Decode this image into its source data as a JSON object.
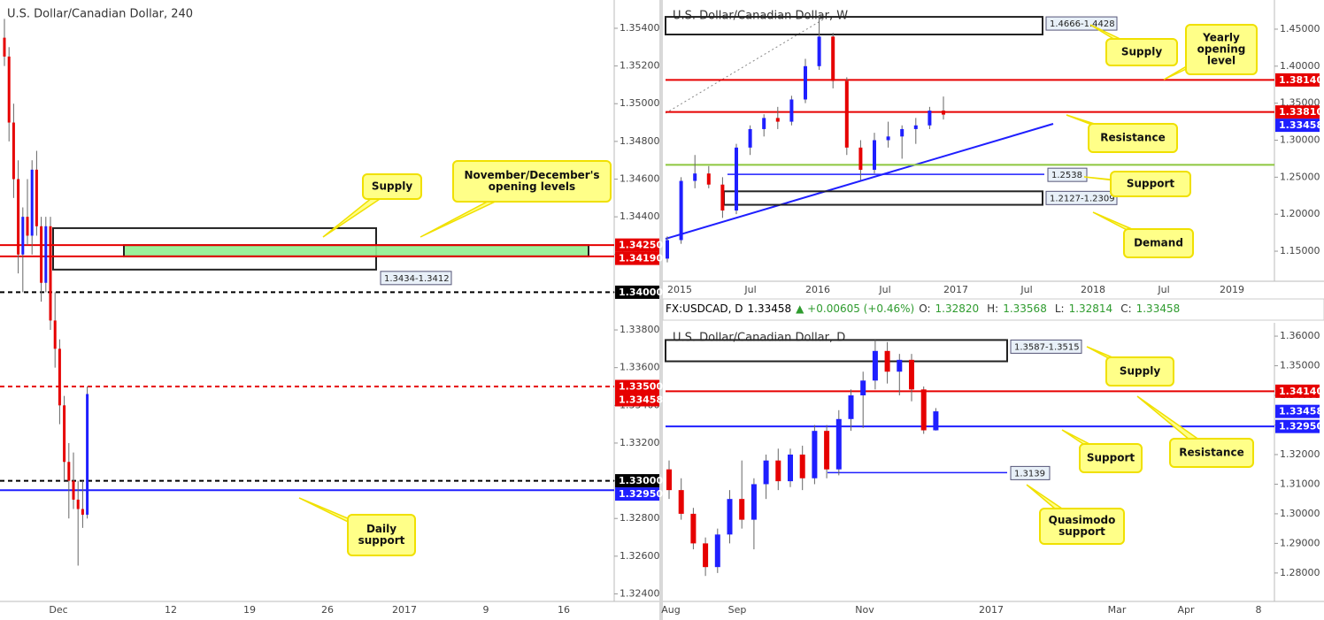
{
  "quote_bar": {
    "symbol": "FX:USDCAD, D",
    "price": "1.33458",
    "change": "▲ +0.00605 (+0.46%)",
    "ohlc": [
      {
        "key": "O:",
        "value": "1.32820"
      },
      {
        "key": "H:",
        "value": "1.33568"
      },
      {
        "key": "L:",
        "value": "1.32814"
      },
      {
        "key": "C:",
        "value": "1.33458"
      }
    ]
  },
  "chart_data": [
    {
      "type": "candlestick",
      "title": "U.S. Dollar/Canadian Dollar, 240",
      "up_color": "#1f1fff",
      "down_color": "#e60000",
      "xtick_labels": [
        "Dec",
        "12",
        "19",
        "26",
        "2017",
        "9",
        "16"
      ],
      "ylim": [
        1.3236,
        1.3555
      ],
      "yticks": [
        {
          "value": 1.324,
          "label": "1.32400"
        },
        {
          "value": 1.326,
          "label": "1.32600"
        },
        {
          "value": 1.328,
          "label": "1.32800"
        },
        {
          "value": 1.33,
          "label": "1.33000"
        },
        {
          "value": 1.332,
          "label": "1.33200"
        },
        {
          "value": 1.334,
          "label": "1.33400"
        },
        {
          "value": 1.336,
          "label": "1.33600"
        },
        {
          "value": 1.338,
          "label": "1.33800"
        },
        {
          "value": 1.34,
          "label": "1.34000"
        },
        {
          "value": 1.342,
          "label": "1.34200"
        },
        {
          "value": 1.344,
          "label": "1.34400"
        },
        {
          "value": 1.346,
          "label": "1.34600"
        },
        {
          "value": 1.348,
          "label": "1.34800"
        },
        {
          "value": 1.35,
          "label": "1.35000"
        },
        {
          "value": 1.352,
          "label": "1.35200"
        },
        {
          "value": 1.354,
          "label": "1.35400"
        }
      ],
      "open": [
        1.3535,
        1.3525,
        1.349,
        1.346,
        1.342,
        1.344,
        1.343,
        1.3465,
        1.3435,
        1.3405,
        1.3435,
        1.3385,
        1.337,
        1.334,
        1.331,
        1.33,
        1.329,
        1.3285,
        1.3282
      ],
      "high": [
        1.3545,
        1.353,
        1.35,
        1.347,
        1.3445,
        1.346,
        1.347,
        1.3475,
        1.344,
        1.344,
        1.344,
        1.34,
        1.3375,
        1.3345,
        1.332,
        1.3315,
        1.33,
        1.33,
        1.335
      ],
      "low": [
        1.352,
        1.348,
        1.345,
        1.341,
        1.34,
        1.3425,
        1.342,
        1.343,
        1.3395,
        1.34,
        1.338,
        1.336,
        1.333,
        1.33,
        1.328,
        1.3285,
        1.3255,
        1.3275,
        1.328
      ],
      "close": [
        1.3525,
        1.349,
        1.346,
        1.342,
        1.344,
        1.343,
        1.3465,
        1.3435,
        1.3405,
        1.3435,
        1.3385,
        1.337,
        1.334,
        1.331,
        1.33,
        1.329,
        1.3285,
        1.3282,
        1.3346
      ],
      "zones": [
        {
          "top": 1.3434,
          "bottom": 1.3412,
          "label": "1.3434-1.3412",
          "color": "none"
        },
        {
          "top": 1.3425,
          "bottom": 1.3419,
          "color": "#90ee90"
        }
      ],
      "rays": [],
      "levels": [
        {
          "value": 1.3425,
          "label": "1.34250",
          "color": "#e60000",
          "style": "solid"
        },
        {
          "value": 1.3419,
          "label": "1.34190",
          "color": "#e60000",
          "style": "solid"
        },
        {
          "value": 1.34,
          "label": "1.34000",
          "color": "#000000",
          "style": "dashed"
        },
        {
          "value": 1.335,
          "label": "1.33500",
          "color": "#e60000",
          "style": "dashed"
        },
        {
          "value": 1.33458,
          "label": "1.33458",
          "color": "#e60000",
          "style": "none"
        },
        {
          "value": 1.33,
          "label": "1.33000",
          "color": "#000000",
          "style": "dashed"
        },
        {
          "value": 1.3295,
          "label": "1.32950",
          "color": "#1f1fff",
          "style": "solid"
        }
      ],
      "callouts": [
        {
          "lines": [
            "Supply"
          ]
        },
        {
          "lines": [
            "November/December's",
            "opening levels"
          ]
        },
        {
          "lines": [
            "Daily",
            "support"
          ]
        }
      ]
    },
    {
      "type": "candlestick",
      "title": "U.S. Dollar/Canadian Dollar, W",
      "up_color": "#1f1fff",
      "down_color": "#e60000",
      "xtick_labels": [
        "2015",
        "Jul",
        "2016",
        "Jul",
        "2017",
        "Jul",
        "2018",
        "Jul",
        "2019"
      ],
      "ylim": [
        1.1094,
        1.4894
      ],
      "yticks": [
        {
          "value": 1.15,
          "label": "1.15000"
        },
        {
          "value": 1.2,
          "label": "1.20000"
        },
        {
          "value": 1.25,
          "label": "1.25000"
        },
        {
          "value": 1.3,
          "label": "1.30000"
        },
        {
          "value": 1.35,
          "label": "1.35000"
        },
        {
          "value": 1.4,
          "label": "1.40000"
        },
        {
          "value": 1.45,
          "label": "1.45000"
        }
      ],
      "open": [
        1.14,
        1.165,
        1.245,
        1.255,
        1.24,
        1.205,
        1.29,
        1.315,
        1.33,
        1.325,
        1.355,
        1.4,
        1.44,
        1.38,
        1.29,
        1.26,
        1.3,
        1.305,
        1.315,
        1.32,
        1.34
      ],
      "high": [
        1.17,
        1.25,
        1.28,
        1.265,
        1.25,
        1.295,
        1.32,
        1.335,
        1.345,
        1.36,
        1.41,
        1.469,
        1.445,
        1.385,
        1.3,
        1.31,
        1.325,
        1.32,
        1.33,
        1.345,
        1.359
      ],
      "low": [
        1.135,
        1.16,
        1.235,
        1.235,
        1.195,
        1.2,
        1.28,
        1.305,
        1.315,
        1.32,
        1.35,
        1.395,
        1.37,
        1.28,
        1.246,
        1.255,
        1.29,
        1.275,
        1.295,
        1.315,
        1.328
      ],
      "close": [
        1.165,
        1.245,
        1.255,
        1.24,
        1.205,
        1.29,
        1.315,
        1.33,
        1.325,
        1.355,
        1.4,
        1.44,
        1.38,
        1.29,
        1.26,
        1.3,
        1.305,
        1.315,
        1.32,
        1.34,
        1.3346
      ],
      "zones": [
        {
          "top": 1.4666,
          "bottom": 1.4428,
          "label": "1.4666-1.4428",
          "color": "none"
        },
        {
          "top": 1.2309,
          "bottom": 1.2127,
          "label": "1.2127-1.2309",
          "color": "none"
        }
      ],
      "rays": [
        {
          "value": 1.2538,
          "color": "#1f1fff"
        }
      ],
      "levels": [
        {
          "value": 1.3814,
          "label": "1.38140",
          "color": "#e60000",
          "style": "solid"
        },
        {
          "value": 1.3381,
          "label": "1.33810",
          "color": "#e60000",
          "style": "solid"
        },
        {
          "value": 1.33458,
          "label": "1.33458",
          "color": "#1f1fff",
          "style": "none"
        },
        {
          "value": 1.2667,
          "color": "#8dc63f",
          "style": "solid"
        }
      ],
      "callouts": [
        {
          "lines": [
            "Supply"
          ]
        },
        {
          "lines": [
            "Yearly",
            "opening",
            "level"
          ]
        },
        {
          "lines": [
            "Resistance"
          ]
        },
        {
          "lines": [
            "Support"
          ]
        },
        {
          "lines": [
            "Demand"
          ]
        }
      ]
    },
    {
      "type": "candlestick",
      "title": "U.S. Dollar/Canadian Dollar, D",
      "up_color": "#1f1fff",
      "down_color": "#e60000",
      "xtick_labels": [
        "Aug",
        "Sep",
        "Nov",
        "2017",
        "Mar",
        "Apr",
        "8"
      ],
      "ylim": [
        1.2704,
        1.3645
      ],
      "yticks": [
        {
          "value": 1.28,
          "label": "1.28000"
        },
        {
          "value": 1.29,
          "label": "1.29000"
        },
        {
          "value": 1.3,
          "label": "1.30000"
        },
        {
          "value": 1.31,
          "label": "1.31000"
        },
        {
          "value": 1.32,
          "label": "1.32000"
        },
        {
          "value": 1.33,
          "label": "1.33000"
        },
        {
          "value": 1.34,
          "label": "1.34000"
        },
        {
          "value": 1.35,
          "label": "1.35000"
        },
        {
          "value": 1.36,
          "label": "1.36000"
        }
      ],
      "open": [
        1.315,
        1.308,
        1.3,
        1.29,
        1.282,
        1.293,
        1.305,
        1.298,
        1.31,
        1.318,
        1.311,
        1.32,
        1.312,
        1.328,
        1.315,
        1.332,
        1.34,
        1.345,
        1.355,
        1.348,
        1.352,
        1.342,
        1.3282
      ],
      "high": [
        1.318,
        1.312,
        1.302,
        1.292,
        1.295,
        1.308,
        1.318,
        1.312,
        1.32,
        1.322,
        1.322,
        1.323,
        1.33,
        1.33,
        1.335,
        1.342,
        1.348,
        1.3587,
        1.358,
        1.354,
        1.354,
        1.343,
        1.3357
      ],
      "low": [
        1.305,
        1.298,
        1.288,
        1.279,
        1.28,
        1.29,
        1.295,
        1.288,
        1.305,
        1.308,
        1.309,
        1.308,
        1.31,
        1.312,
        1.313,
        1.328,
        1.329,
        1.342,
        1.344,
        1.34,
        1.338,
        1.327,
        1.3281
      ],
      "close": [
        1.308,
        1.3,
        1.29,
        1.282,
        1.293,
        1.305,
        1.298,
        1.31,
        1.318,
        1.311,
        1.32,
        1.312,
        1.328,
        1.315,
        1.332,
        1.34,
        1.345,
        1.355,
        1.348,
        1.352,
        1.342,
        1.3282,
        1.3346
      ],
      "zones": [
        {
          "top": 1.3587,
          "bottom": 1.3515,
          "label": "1.3587-1.3515",
          "color": "none"
        }
      ],
      "rays": [
        {
          "value": 1.3139,
          "color": "#1f1fff"
        }
      ],
      "levels": [
        {
          "value": 1.3414,
          "label": "1.34140",
          "color": "#e60000",
          "style": "solid"
        },
        {
          "value": 1.33458,
          "label": "1.33458",
          "color": "#1f1fff",
          "style": "none"
        },
        {
          "value": 1.3295,
          "label": "1.32950",
          "color": "#1f1fff",
          "style": "solid"
        }
      ],
      "callouts": [
        {
          "lines": [
            "Supply"
          ]
        },
        {
          "lines": [
            "Support"
          ]
        },
        {
          "lines": [
            "Resistance"
          ]
        },
        {
          "lines": [
            "Quasimodo",
            "support"
          ]
        }
      ]
    }
  ]
}
